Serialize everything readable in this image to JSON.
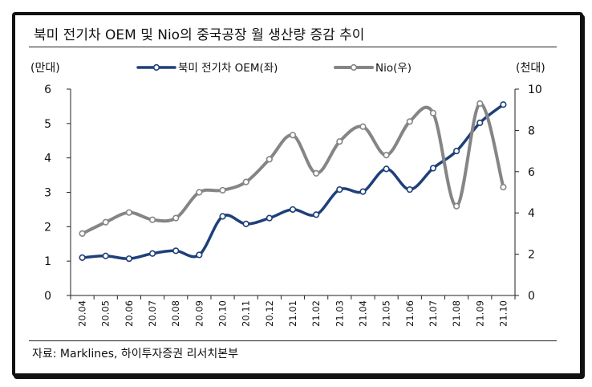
{
  "title": "북미 전기차 OEM 및 Nio의 중국공장 월 생산량 증감 추이",
  "source": "자료: Marklines, 하이투자증권 리서치본부",
  "chart_data": {
    "type": "line",
    "categories": [
      "20.04",
      "20.05",
      "20.06",
      "20.07",
      "20.08",
      "20.09",
      "20.10",
      "20.11",
      "20.12",
      "21.01",
      "21.02",
      "21.03",
      "21.04",
      "21.05",
      "21.06",
      "21.07",
      "21.08",
      "21.09",
      "21.10"
    ],
    "series": [
      {
        "name": "북미 전기차 OEM(좌)",
        "axis": "left",
        "color": "#1f3f7a",
        "values": [
          1.1,
          1.15,
          1.07,
          1.22,
          1.3,
          1.18,
          2.3,
          2.08,
          2.25,
          2.5,
          2.35,
          3.08,
          3.02,
          3.68,
          3.08,
          3.7,
          4.2,
          5.02,
          5.55
        ]
      },
      {
        "name": "Nio(우)",
        "axis": "right",
        "color": "#858585",
        "values": [
          3.0,
          3.55,
          4.02,
          3.67,
          3.75,
          5.0,
          5.1,
          5.5,
          6.6,
          7.77,
          5.92,
          7.46,
          8.18,
          6.8,
          8.43,
          8.84,
          4.33,
          9.3,
          5.25
        ]
      }
    ],
    "y_left": {
      "unit": "(만대)",
      "min": 0,
      "max": 6,
      "ticks": [
        0,
        1,
        2,
        3,
        4,
        5,
        6
      ]
    },
    "y_right": {
      "unit": "(천대)",
      "min": 0,
      "max": 10,
      "ticks": [
        0,
        2,
        4,
        6,
        8,
        10
      ]
    },
    "legend_position": "top-center",
    "grid": false
  }
}
